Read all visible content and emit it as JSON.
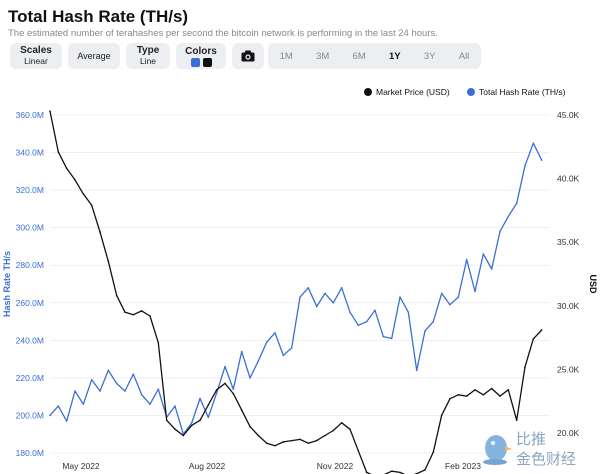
{
  "header": {
    "title": "Total Hash Rate (TH/s)",
    "subtitle": "The estimated number of terahashes per second the bitcoin network is performing in the last 24 hours."
  },
  "toolbar": {
    "scales_label": "Scales",
    "scales_value": "Linear",
    "average_label": "Average",
    "type_label": "Type",
    "type_value": "Line",
    "colors_label": "Colors",
    "camera_icon": "camera-icon",
    "ranges": [
      {
        "label": "1M",
        "active": false
      },
      {
        "label": "3M",
        "active": false
      },
      {
        "label": "6M",
        "active": false
      },
      {
        "label": "1Y",
        "active": true
      },
      {
        "label": "3Y",
        "active": false
      },
      {
        "label": "All",
        "active": false
      }
    ]
  },
  "legend": {
    "market_price": "Market Price (USD)",
    "hash_rate": "Total Hash Rate (TH/s)"
  },
  "colors": {
    "hash_rate": "#3b6fd4",
    "market_price": "#111111",
    "axis_left_text": "#3b6fd4",
    "grid": "#e6e6e6"
  },
  "watermark": {
    "icon": "bird-logo-icon",
    "text_top": "比推",
    "text_bottom": "金色财经"
  },
  "chart_data": {
    "type": "line",
    "title": "Total Hash Rate (TH/s)",
    "xlabel": "",
    "ylabel": "Hash Rate TH/s",
    "y2label": "USD",
    "x_ticks": [
      "May 2022",
      "Aug 2022",
      "Nov 2022",
      "Feb 2023"
    ],
    "y_ticks": [
      "180.0M",
      "200.0M",
      "220.0M",
      "240.0M",
      "260.0M",
      "280.0M",
      "300.0M",
      "320.0M",
      "340.0M",
      "360.0M"
    ],
    "y2_ticks": [
      "20.0K",
      "25.0K",
      "30.0K",
      "35.0K",
      "40.0K",
      "45.0K"
    ],
    "ylim": [
      180,
      360
    ],
    "y2lim": [
      16.5,
      45
    ],
    "x_unit": "months since Apr 1 2022",
    "xlim": [
      0.0,
      12.0
    ],
    "series": [
      {
        "name": "Total Hash Rate (TH/s)",
        "axis": "left",
        "unit": "M TH/s",
        "x": [
          0.0,
          0.2,
          0.4,
          0.6,
          0.8,
          1.0,
          1.2,
          1.4,
          1.6,
          1.8,
          2.0,
          2.2,
          2.4,
          2.6,
          2.8,
          3.0,
          3.2,
          3.4,
          3.6,
          3.8,
          4.0,
          4.2,
          4.4,
          4.6,
          4.8,
          5.0,
          5.2,
          5.4,
          5.6,
          5.8,
          6.0,
          6.2,
          6.4,
          6.6,
          6.8,
          7.0,
          7.2,
          7.4,
          7.6,
          7.8,
          8.0,
          8.2,
          8.4,
          8.6,
          8.8,
          9.0,
          9.2,
          9.4,
          9.6,
          9.8,
          10.0,
          10.2,
          10.4,
          10.6,
          10.8,
          11.0,
          11.2,
          11.4,
          11.6,
          11.8
        ],
        "values": [
          200,
          205,
          197,
          213,
          206,
          219,
          213,
          224,
          217,
          213,
          222,
          211,
          206,
          214,
          199,
          205,
          190,
          196,
          209,
          199,
          212,
          226,
          214,
          234,
          220,
          229,
          239,
          244,
          232,
          236,
          263,
          268,
          258,
          265,
          260,
          268,
          255,
          248,
          250,
          256,
          242,
          241,
          263,
          255,
          224,
          245,
          250,
          265,
          259,
          263,
          283,
          266,
          286,
          278,
          298,
          306,
          313,
          333,
          345,
          336
        ]
      },
      {
        "name": "Market Price (USD)",
        "axis": "right",
        "unit": "K USD",
        "x": [
          0.0,
          0.2,
          0.4,
          0.6,
          0.8,
          1.0,
          1.2,
          1.4,
          1.6,
          1.8,
          2.0,
          2.2,
          2.4,
          2.6,
          2.8,
          3.0,
          3.2,
          3.4,
          3.6,
          3.8,
          4.0,
          4.2,
          4.4,
          4.6,
          4.8,
          5.0,
          5.2,
          5.4,
          5.6,
          5.8,
          6.0,
          6.2,
          6.4,
          6.6,
          6.8,
          7.0,
          7.2,
          7.4,
          7.6,
          7.8,
          8.0,
          8.2,
          8.4,
          8.6,
          8.8,
          9.0,
          9.2,
          9.4,
          9.6,
          9.8,
          10.0,
          10.2,
          10.4,
          10.6,
          10.8,
          11.0,
          11.2,
          11.4,
          11.6,
          11.8
        ],
        "values": [
          45.3,
          42.1,
          40.8,
          39.9,
          38.8,
          37.9,
          35.8,
          33.5,
          30.8,
          29.5,
          29.3,
          29.6,
          29.2,
          27.1,
          21.0,
          20.3,
          19.8,
          20.6,
          21.0,
          22.2,
          23.4,
          23.9,
          23.1,
          21.8,
          20.5,
          19.8,
          19.2,
          19.0,
          19.3,
          19.4,
          19.5,
          19.2,
          19.4,
          19.8,
          20.2,
          20.8,
          20.3,
          18.6,
          16.9,
          16.6,
          16.7,
          17.0,
          16.9,
          16.6,
          16.8,
          17.1,
          18.5,
          21.4,
          22.7,
          23.0,
          22.9,
          23.4,
          23.0,
          23.5,
          22.9,
          23.4,
          21.0,
          25.2,
          27.4,
          28.1
        ]
      }
    ]
  }
}
